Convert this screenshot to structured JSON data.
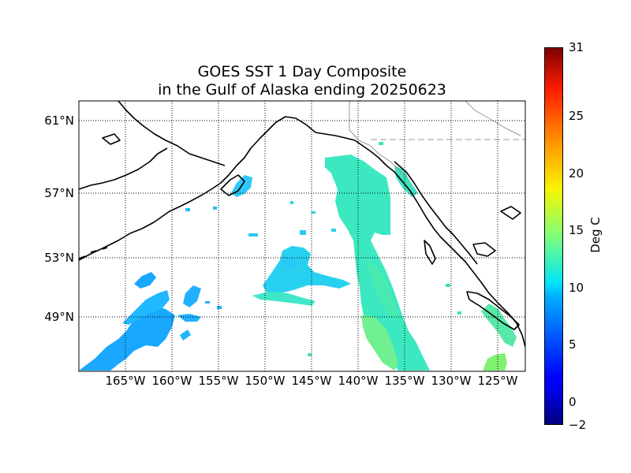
{
  "title_line1": "GOES SST 1 Day Composite",
  "title_line2": "in the Gulf of Alaska ending 20250623",
  "lat_labels": [
    "61°N",
    "57°N",
    "53°N",
    "49°N"
  ],
  "lon_labels": [
    "165°W",
    "160°W",
    "155°W",
    "150°W",
    "145°W",
    "140°W",
    "135°W",
    "130°W",
    "125°W"
  ],
  "colorbar": {
    "title": "Deg C",
    "min": -2,
    "max": 31,
    "ticks": [
      "31",
      "25",
      "20",
      "15",
      "10",
      "5",
      "0",
      "−2"
    ],
    "tick_values": [
      31,
      25,
      20,
      15,
      10,
      5,
      0,
      -2
    ],
    "colormap": "jet"
  },
  "colors": {
    "sst_cold_patches": "#1aa0ff",
    "sst_mid_patches": "#3cf0c0",
    "sst_warm_patches": "#90f060",
    "coastline": "#000000",
    "grid": "#000000",
    "border": "#999999"
  }
}
